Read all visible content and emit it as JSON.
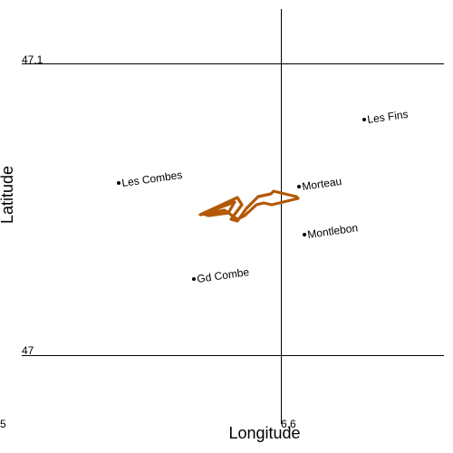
{
  "map": {
    "x_axis": {
      "label": "Longitude",
      "tick_labels": [
        "5",
        "6.6"
      ]
    },
    "y_axis": {
      "label": "Latitude",
      "tick_labels": [
        "47.1",
        "47"
      ]
    },
    "places": [
      {
        "name": "Les Fins"
      },
      {
        "name": "Les Combes"
      },
      {
        "name": "Morteau"
      },
      {
        "name": "Montlebon"
      },
      {
        "name": "Gd Combe"
      }
    ],
    "track": {
      "color": "#b35806"
    }
  }
}
